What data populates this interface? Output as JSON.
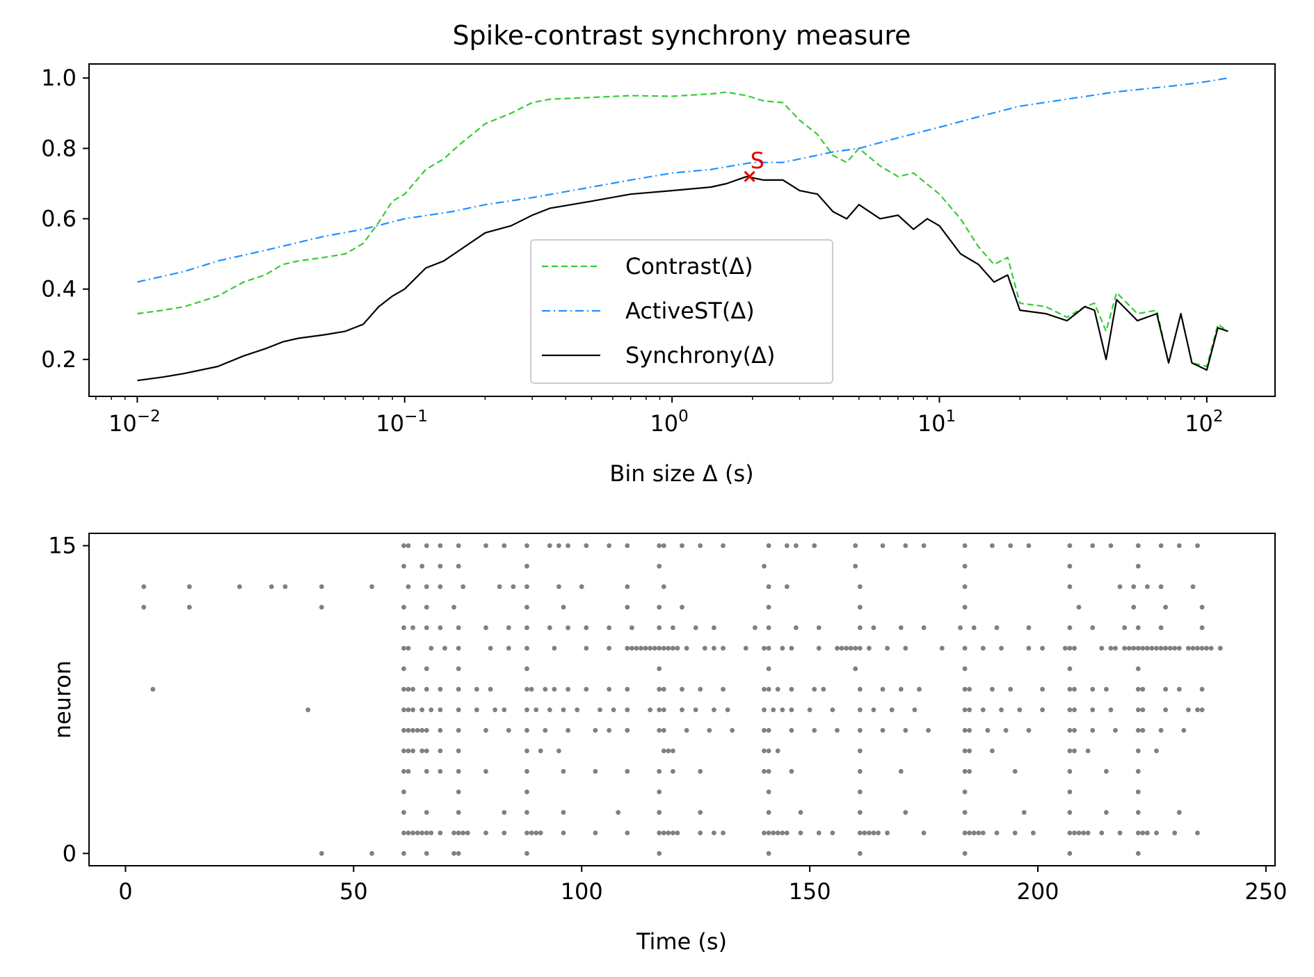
{
  "figure": {
    "title": "Spike-contrast synchrony measure"
  },
  "chart_data": [
    {
      "type": "line",
      "title": "Spike-contrast synchrony measure",
      "xlabel": "Bin size Δ (s)",
      "ylabel": "",
      "xscale": "log",
      "xlim": [
        0.0066,
        180
      ],
      "ylim": [
        0.095,
        1.04
      ],
      "xticks": [
        {
          "value": 0.01,
          "base": "10",
          "exp": "−2"
        },
        {
          "value": 0.1,
          "base": "10",
          "exp": "−1"
        },
        {
          "value": 1,
          "base": "10",
          "exp": "0"
        },
        {
          "value": 10,
          "base": "10",
          "exp": "1"
        },
        {
          "value": 100,
          "base": "10",
          "exp": "2"
        }
      ],
      "yticks": [
        {
          "value": 0.2,
          "label": "0.2"
        },
        {
          "value": 0.4,
          "label": "0.4"
        },
        {
          "value": 0.6,
          "label": "0.6"
        },
        {
          "value": 0.8,
          "label": "0.8"
        },
        {
          "value": 1.0,
          "label": "1.0"
        }
      ],
      "legend": "lower-center",
      "series": [
        {
          "name": "Contrast(Δ)",
          "color": "#32cd32",
          "style": "dashed",
          "x": [
            0.01,
            0.0125,
            0.015,
            0.02,
            0.025,
            0.03,
            0.035,
            0.04,
            0.05,
            0.06,
            0.07,
            0.08,
            0.09,
            0.1,
            0.12,
            0.14,
            0.16,
            0.2,
            0.25,
            0.3,
            0.35,
            0.5,
            0.7,
            1.0,
            1.4,
            1.6,
            1.9,
            2.2,
            2.6,
            3.0,
            3.5,
            4.0,
            4.5,
            5.0,
            6.0,
            7.0,
            8.0,
            10.0,
            12.0,
            14.0,
            16.0,
            18.0,
            20.0,
            25.0,
            30.0,
            35.0,
            38.0,
            42.0,
            46.0,
            55.0,
            65.0,
            72.0,
            80.0,
            88.0,
            100.0,
            110.0,
            120.0
          ],
          "y": [
            0.33,
            0.34,
            0.35,
            0.38,
            0.42,
            0.44,
            0.47,
            0.48,
            0.49,
            0.5,
            0.53,
            0.59,
            0.65,
            0.67,
            0.74,
            0.77,
            0.81,
            0.87,
            0.9,
            0.93,
            0.94,
            0.945,
            0.95,
            0.948,
            0.955,
            0.96,
            0.95,
            0.935,
            0.93,
            0.88,
            0.84,
            0.78,
            0.76,
            0.8,
            0.75,
            0.72,
            0.73,
            0.67,
            0.6,
            0.52,
            0.47,
            0.49,
            0.36,
            0.35,
            0.32,
            0.35,
            0.36,
            0.28,
            0.39,
            0.33,
            0.34,
            0.19,
            0.33,
            0.19,
            0.18,
            0.3,
            0.28
          ]
        },
        {
          "name": "ActiveST(Δ)",
          "color": "#1e90ff",
          "style": "dashdot",
          "x": [
            0.01,
            0.015,
            0.02,
            0.03,
            0.05,
            0.07,
            0.1,
            0.15,
            0.2,
            0.3,
            0.5,
            0.7,
            1.0,
            1.4,
            2.0,
            2.6,
            3.0,
            4.0,
            5.0,
            7.0,
            10.0,
            14.0,
            20.0,
            30.0,
            45.0,
            60.0,
            80.0,
            100.0,
            120.0
          ],
          "y": [
            0.42,
            0.45,
            0.48,
            0.51,
            0.55,
            0.57,
            0.6,
            0.62,
            0.64,
            0.66,
            0.69,
            0.71,
            0.73,
            0.74,
            0.76,
            0.76,
            0.77,
            0.79,
            0.8,
            0.83,
            0.86,
            0.89,
            0.92,
            0.94,
            0.96,
            0.97,
            0.98,
            0.99,
            1.0
          ]
        },
        {
          "name": "Synchrony(Δ)",
          "color": "#000000",
          "style": "solid",
          "x": [
            0.01,
            0.0125,
            0.015,
            0.02,
            0.025,
            0.03,
            0.035,
            0.04,
            0.05,
            0.06,
            0.07,
            0.08,
            0.09,
            0.1,
            0.12,
            0.14,
            0.16,
            0.2,
            0.25,
            0.3,
            0.35,
            0.5,
            0.7,
            1.0,
            1.4,
            1.6,
            1.9,
            2.2,
            2.6,
            3.0,
            3.5,
            4.0,
            4.5,
            5.0,
            6.0,
            7.0,
            8.0,
            9.0,
            10.0,
            12.0,
            14.0,
            16.0,
            18.0,
            20.0,
            25.0,
            30.0,
            35.0,
            38.0,
            42.0,
            46.0,
            55.0,
            65.0,
            72.0,
            80.0,
            88.0,
            100.0,
            110.0,
            120.0
          ],
          "y": [
            0.14,
            0.15,
            0.16,
            0.18,
            0.21,
            0.23,
            0.25,
            0.26,
            0.27,
            0.28,
            0.3,
            0.35,
            0.38,
            0.4,
            0.46,
            0.48,
            0.51,
            0.56,
            0.58,
            0.61,
            0.63,
            0.65,
            0.67,
            0.68,
            0.69,
            0.7,
            0.72,
            0.71,
            0.71,
            0.68,
            0.67,
            0.62,
            0.6,
            0.64,
            0.6,
            0.61,
            0.57,
            0.6,
            0.58,
            0.5,
            0.47,
            0.42,
            0.44,
            0.34,
            0.33,
            0.31,
            0.35,
            0.34,
            0.2,
            0.37,
            0.31,
            0.33,
            0.19,
            0.33,
            0.19,
            0.17,
            0.29,
            0.28
          ]
        }
      ],
      "annotations": [
        {
          "label": "S",
          "x": 1.95,
          "y": 0.72,
          "color": "#e00000",
          "marker": "x"
        }
      ]
    },
    {
      "type": "scatter",
      "subtype": "raster",
      "title": "",
      "xlabel": "Time (s)",
      "ylabel": "neuron",
      "xlim": [
        -8,
        252
      ],
      "ylim": [
        -0.6,
        15.6
      ],
      "xticks": [
        0,
        50,
        100,
        150,
        200,
        250
      ],
      "yticks": [
        0,
        15
      ],
      "marker_color": "#808080",
      "events": [
        {
          "neuron": 15,
          "times": [
            61,
            62,
            66,
            69,
            73,
            79,
            83,
            88,
            93,
            95,
            97,
            101,
            106,
            110,
            117,
            118,
            122,
            126,
            131,
            141,
            145,
            147,
            151,
            160,
            166,
            171,
            175,
            184,
            190,
            194,
            198,
            207,
            212,
            216,
            222,
            227,
            231,
            235
          ]
        },
        {
          "neuron": 14,
          "times": [
            61,
            65,
            69,
            73,
            88,
            117,
            140,
            160,
            184,
            207,
            222
          ]
        },
        {
          "neuron": 13,
          "times": [
            4,
            14,
            25,
            32,
            35,
            43,
            54,
            62,
            66,
            69,
            74,
            82,
            85,
            88,
            95,
            100,
            110,
            118,
            141,
            145,
            161,
            184,
            207,
            218,
            221,
            224,
            227,
            234
          ]
        },
        {
          "neuron": 12,
          "times": [
            4,
            14,
            43,
            61,
            66,
            72,
            88,
            96,
            110,
            117,
            122,
            141,
            161,
            184,
            209,
            221,
            228,
            236
          ]
        },
        {
          "neuron": 11,
          "times": [
            61,
            63,
            66,
            69,
            73,
            79,
            84,
            88,
            93,
            97,
            101,
            106,
            111,
            117,
            120,
            125,
            129,
            138,
            141,
            147,
            152,
            161,
            164,
            170,
            175,
            183,
            186,
            191,
            198,
            207,
            212,
            219,
            222,
            227,
            236
          ]
        },
        {
          "neuron": 10,
          "times": [
            61,
            62,
            67,
            70,
            73,
            80,
            84,
            88,
            94,
            101,
            106,
            110,
            111,
            112,
            113,
            114,
            115,
            116,
            117,
            118,
            119,
            120,
            121,
            123,
            127,
            129,
            131,
            136,
            140,
            141,
            144,
            146,
            152,
            156,
            157,
            158,
            159,
            160,
            161,
            163,
            167,
            171,
            179,
            184,
            188,
            192,
            198,
            201,
            206,
            207,
            208,
            214,
            216,
            217,
            219,
            220,
            221,
            222,
            223,
            224,
            225,
            226,
            227,
            228,
            229,
            230,
            231,
            233,
            234,
            235,
            236,
            237,
            238,
            240
          ]
        },
        {
          "neuron": 9,
          "times": [
            61,
            66,
            73,
            88,
            117,
            141,
            160,
            184,
            207,
            222
          ]
        },
        {
          "neuron": 8,
          "times": [
            6,
            61,
            62,
            63,
            66,
            69,
            73,
            77,
            80,
            88,
            89,
            92,
            94,
            97,
            101,
            106,
            110,
            117,
            118,
            122,
            126,
            131,
            140,
            141,
            143,
            146,
            151,
            153,
            161,
            166,
            170,
            174,
            184,
            185,
            190,
            194,
            201,
            207,
            208,
            212,
            215,
            222,
            223,
            228,
            231,
            236
          ]
        },
        {
          "neuron": 7,
          "times": [
            40,
            61,
            62,
            63,
            65,
            67,
            69,
            73,
            77,
            81,
            83,
            88,
            90,
            93,
            96,
            99,
            104,
            107,
            110,
            115,
            117,
            118,
            122,
            125,
            129,
            132,
            140,
            142,
            144,
            146,
            150,
            155,
            161,
            164,
            168,
            173,
            184,
            185,
            188,
            192,
            196,
            201,
            207,
            208,
            212,
            216,
            222,
            223,
            228,
            233,
            235,
            236
          ]
        },
        {
          "neuron": 6,
          "times": [
            61,
            62,
            63,
            64,
            65,
            66,
            69,
            73,
            79,
            84,
            88,
            92,
            97,
            103,
            106,
            110,
            117,
            118,
            123,
            128,
            133,
            140,
            141,
            146,
            151,
            156,
            161,
            166,
            171,
            176,
            184,
            185,
            189,
            193,
            198,
            207,
            208,
            212,
            217,
            222,
            223,
            227,
            232
          ]
        },
        {
          "neuron": 5,
          "times": [
            61,
            62,
            63,
            65,
            66,
            69,
            73,
            88,
            91,
            95,
            118,
            119,
            120,
            140,
            141,
            143,
            161,
            184,
            185,
            190,
            207,
            208,
            211,
            222,
            226
          ]
        },
        {
          "neuron": 4,
          "times": [
            61,
            62,
            66,
            69,
            73,
            79,
            88,
            96,
            103,
            110,
            117,
            120,
            126,
            140,
            141,
            146,
            161,
            170,
            184,
            185,
            195,
            207,
            215,
            222
          ]
        },
        {
          "neuron": 3,
          "times": [
            61,
            73,
            88,
            117,
            141,
            161,
            184,
            207,
            222
          ]
        },
        {
          "neuron": 2,
          "times": [
            61,
            66,
            73,
            83,
            88,
            96,
            108,
            117,
            126,
            141,
            148,
            161,
            171,
            184,
            197,
            207,
            215,
            222,
            231
          ]
        },
        {
          "neuron": 1,
          "times": [
            61,
            62,
            63,
            64,
            65,
            66,
            67,
            69,
            72,
            73,
            74,
            75,
            79,
            83,
            88,
            89,
            90,
            91,
            96,
            103,
            110,
            117,
            118,
            119,
            120,
            121,
            126,
            129,
            131,
            140,
            141,
            142,
            143,
            144,
            145,
            148,
            152,
            155,
            161,
            162,
            163,
            164,
            165,
            167,
            175,
            184,
            185,
            186,
            187,
            188,
            191,
            195,
            199,
            207,
            208,
            209,
            210,
            211,
            214,
            218,
            222,
            223,
            224,
            226,
            230,
            235
          ]
        },
        {
          "neuron": 0,
          "times": [
            43,
            54,
            61,
            66,
            72,
            73,
            88,
            117,
            141,
            161,
            184,
            207,
            222
          ]
        }
      ]
    }
  ]
}
